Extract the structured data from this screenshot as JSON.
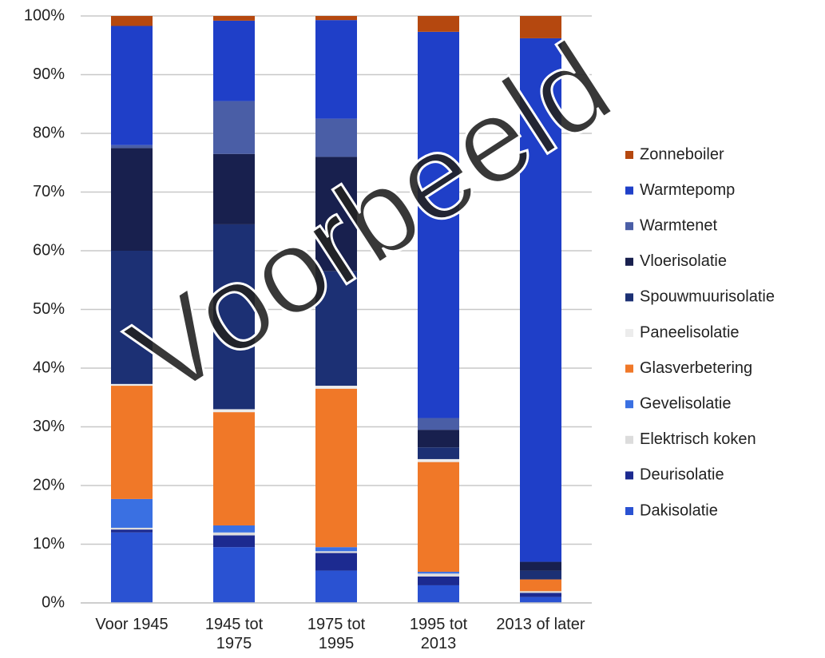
{
  "chart_data": {
    "type": "stacked_bar",
    "categories": [
      "Voor 1945",
      "1945 tot 1975",
      "1975 tot 1995",
      "1995 tot 2013",
      "2013 of later"
    ],
    "series": [
      {
        "name": "Dakisolatie",
        "color": "#2a52d2",
        "values": [
          12,
          9.5,
          5.5,
          3,
          1
        ]
      },
      {
        "name": "Deurisolatie",
        "color": "#1c2a90",
        "values": [
          0.5,
          2,
          3,
          1.5,
          0.7
        ]
      },
      {
        "name": "Elektrisch koken",
        "color": "#dcdcdc",
        "values": [
          0.3,
          0.5,
          0.3,
          0.5,
          0.3
        ]
      },
      {
        "name": "Gevelisolatie",
        "color": "#3a70e2",
        "values": [
          4.9,
          1.2,
          0.7,
          0.3,
          0
        ]
      },
      {
        "name": "Glasverbetering",
        "color": "#f07828",
        "values": [
          19.3,
          19.3,
          27,
          18.7,
          2
        ]
      },
      {
        "name": "Paneelisolatie",
        "color": "#ececec",
        "values": [
          0.3,
          0.5,
          0.5,
          0.5,
          0
        ]
      },
      {
        "name": "Spouwmuurisolatie",
        "color": "#1c3074",
        "values": [
          22.7,
          31.5,
          19.5,
          2,
          1.5
        ]
      },
      {
        "name": "Vloerisolatie",
        "color": "#18204e",
        "values": [
          17.5,
          12,
          19.5,
          3,
          1.5
        ]
      },
      {
        "name": "Warmtenet",
        "color": "#4a5ea6",
        "values": [
          0.5,
          9,
          6.5,
          2,
          0
        ]
      },
      {
        "name": "Warmtepomp",
        "color": "#1f3fc8",
        "values": [
          20.3,
          13.7,
          16.8,
          65.8,
          89.2
        ]
      },
      {
        "name": "Zonneboiler",
        "color": "#b5480f",
        "values": [
          1.7,
          0.8,
          0.7,
          2.7,
          3.8
        ]
      }
    ],
    "ylim": [
      0,
      100
    ],
    "yticks": [
      {
        "value": 0,
        "label": "0%"
      },
      {
        "value": 10,
        "label": "10%"
      },
      {
        "value": 20,
        "label": "20%"
      },
      {
        "value": 30,
        "label": "30%"
      },
      {
        "value": 40,
        "label": "40%"
      },
      {
        "value": 50,
        "label": "50%"
      },
      {
        "value": 60,
        "label": "60%"
      },
      {
        "value": 70,
        "label": "70%"
      },
      {
        "value": 80,
        "label": "80%"
      },
      {
        "value": 90,
        "label": "90%"
      },
      {
        "value": 100,
        "label": "100%"
      }
    ],
    "grid": true,
    "legend": "right",
    "watermark": "Voorbeeld"
  }
}
